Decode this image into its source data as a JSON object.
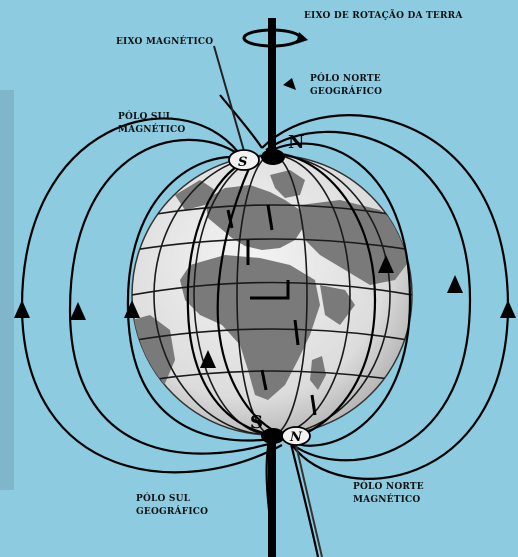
{
  "labels": {
    "rotation_axis": "EIXO DE ROTAÇÃO DA TERRA",
    "magnetic_axis": "EIXO MAGNÉTICO",
    "south_magnetic_l1": "PÓLO SUL",
    "south_magnetic_l2": "MAGNÉTICO",
    "north_geographic_l1": "PÓLO NORTE",
    "north_geographic_l2": "GEOGRÁFICO",
    "south_geographic_l1": "PÓLO SUL",
    "south_geographic_l2": "GEOGRÁFICO",
    "north_magnetic_l1": "PÓLO NORTE",
    "north_magnetic_l2": "MAGNÉTICO"
  },
  "poles": {
    "north_geo_letter": "N",
    "south_geo_letter": "S",
    "mag_top_letter": "S",
    "mag_bottom_letter": "N"
  },
  "colors": {
    "background": "#8ccbe0",
    "ocean": "#e8e8e8",
    "land": "#7a7a7a",
    "field_lines": "#000000"
  }
}
